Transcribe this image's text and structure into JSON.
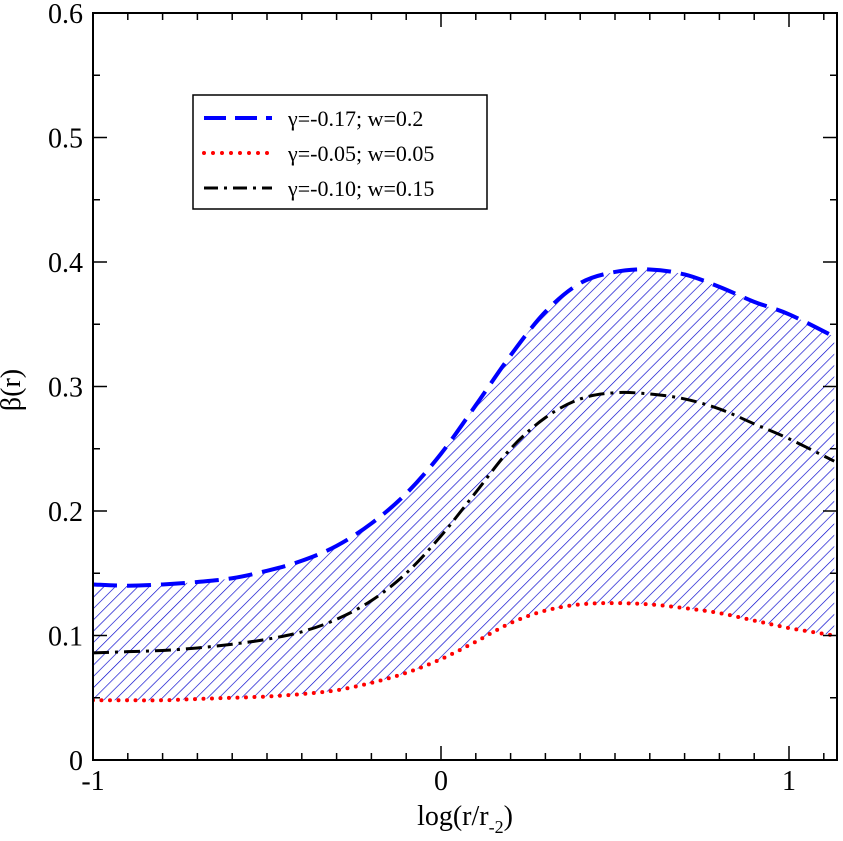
{
  "chart_data": {
    "type": "line",
    "title": "",
    "xlabel": {
      "main": "log(r/r",
      "sub": "-2",
      "close": ")"
    },
    "ylabel": "β(r)",
    "xlim": [
      -1,
      1.13
    ],
    "ylim": [
      0,
      0.6
    ],
    "x_ticks": [
      -1,
      0,
      1
    ],
    "x_tick_labels": [
      "-1",
      "0",
      "1"
    ],
    "y_ticks": [
      0,
      0.1,
      0.2,
      0.3,
      0.4,
      0.5,
      0.6
    ],
    "y_tick_labels": [
      "0",
      "0.1",
      "0.2",
      "0.3",
      "0.4",
      "0.5",
      "0.6"
    ],
    "shaded_region": {
      "between": [
        "upper",
        "lower"
      ],
      "color": "#0000cc",
      "pattern": "diagonal-hatch"
    },
    "series": [
      {
        "id": "upper",
        "name": "γ=-0.17; w=0.2",
        "style": "dashed",
        "color": "#0000ff",
        "x": [
          -1,
          -0.9,
          -0.8,
          -0.7,
          -0.6,
          -0.5,
          -0.4,
          -0.3,
          -0.2,
          -0.1,
          0,
          0.1,
          0.2,
          0.3,
          0.4,
          0.5,
          0.6,
          0.7,
          0.8,
          0.9,
          1.0,
          1.13
        ],
        "y": [
          0.141,
          0.14,
          0.141,
          0.143,
          0.146,
          0.152,
          0.16,
          0.172,
          0.19,
          0.214,
          0.246,
          0.285,
          0.325,
          0.36,
          0.383,
          0.392,
          0.394,
          0.39,
          0.38,
          0.368,
          0.358,
          0.34
        ]
      },
      {
        "id": "lower",
        "name": "γ=-0.05; w=0.05",
        "style": "dotted",
        "color": "#ff0000",
        "x": [
          -1,
          -0.9,
          -0.8,
          -0.7,
          -0.6,
          -0.5,
          -0.4,
          -0.3,
          -0.2,
          -0.1,
          0,
          0.1,
          0.2,
          0.3,
          0.4,
          0.5,
          0.6,
          0.7,
          0.8,
          0.9,
          1.0,
          1.13
        ],
        "y": [
          0.048,
          0.048,
          0.048,
          0.049,
          0.05,
          0.051,
          0.053,
          0.056,
          0.062,
          0.07,
          0.081,
          0.095,
          0.11,
          0.12,
          0.125,
          0.126,
          0.125,
          0.122,
          0.118,
          0.112,
          0.106,
          0.1
        ]
      },
      {
        "id": "middle",
        "name": "γ=-0.10; w=0.15",
        "style": "dash-dot",
        "color": "#000000",
        "x": [
          -1,
          -0.9,
          -0.8,
          -0.7,
          -0.6,
          -0.5,
          -0.4,
          -0.3,
          -0.2,
          -0.1,
          0,
          0.1,
          0.2,
          0.3,
          0.4,
          0.5,
          0.6,
          0.7,
          0.8,
          0.9,
          1.0,
          1.13
        ],
        "y": [
          0.086,
          0.087,
          0.088,
          0.09,
          0.093,
          0.097,
          0.103,
          0.113,
          0.128,
          0.15,
          0.18,
          0.215,
          0.25,
          0.275,
          0.29,
          0.295,
          0.294,
          0.29,
          0.282,
          0.27,
          0.258,
          0.24
        ]
      }
    ],
    "legend": {
      "position": "top-left",
      "entries": [
        "γ=-0.17; w=0.2",
        "γ=-0.05; w=0.05",
        "γ=-0.10; w=0.15"
      ]
    }
  }
}
